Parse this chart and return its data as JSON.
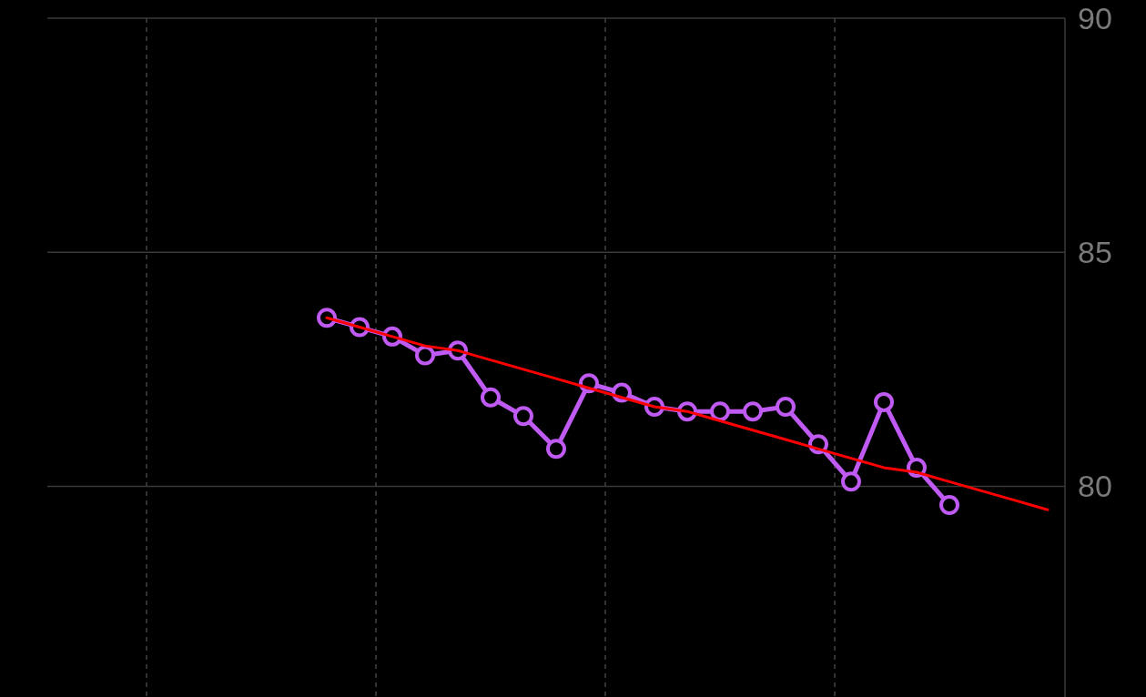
{
  "chart_data": {
    "type": "line",
    "categories": [
      null,
      null,
      null,
      null,
      null,
      null,
      null,
      null,
      null,
      null,
      null,
      null,
      null,
      null,
      null,
      null,
      null,
      null,
      null,
      null,
      null,
      null,
      null,
      null,
      null,
      null,
      null,
      null,
      null,
      null,
      null
    ],
    "series": [
      {
        "color": "#bf5af2",
        "marker": "circle",
        "values": [
          null,
          null,
          null,
          null,
          null,
          null,
          null,
          null,
          83.6,
          83.4,
          83.2,
          82.8,
          82.9,
          81.9,
          81.5,
          80.8,
          82.2,
          82.0,
          81.7,
          81.6,
          81.6,
          81.6,
          81.7,
          80.9,
          80.1,
          81.8,
          80.4,
          79.6,
          null,
          null,
          null
        ]
      },
      {
        "color": "#ff0000",
        "marker": "none",
        "values": [
          null,
          null,
          null,
          null,
          null,
          null,
          null,
          null,
          83.6,
          83.4,
          83.2,
          83.0,
          82.9,
          82.7,
          82.5,
          82.3,
          82.1,
          81.9,
          81.7,
          81.6,
          81.4,
          81.2,
          81.0,
          80.8,
          80.6,
          80.4,
          80.3,
          80.1,
          79.9,
          79.7,
          79.5
        ]
      }
    ],
    "ylim": [
      75.5,
      90
    ],
    "yticks": [
      80,
      85,
      90
    ],
    "grid": true,
    "tick_labels": "y"
  }
}
